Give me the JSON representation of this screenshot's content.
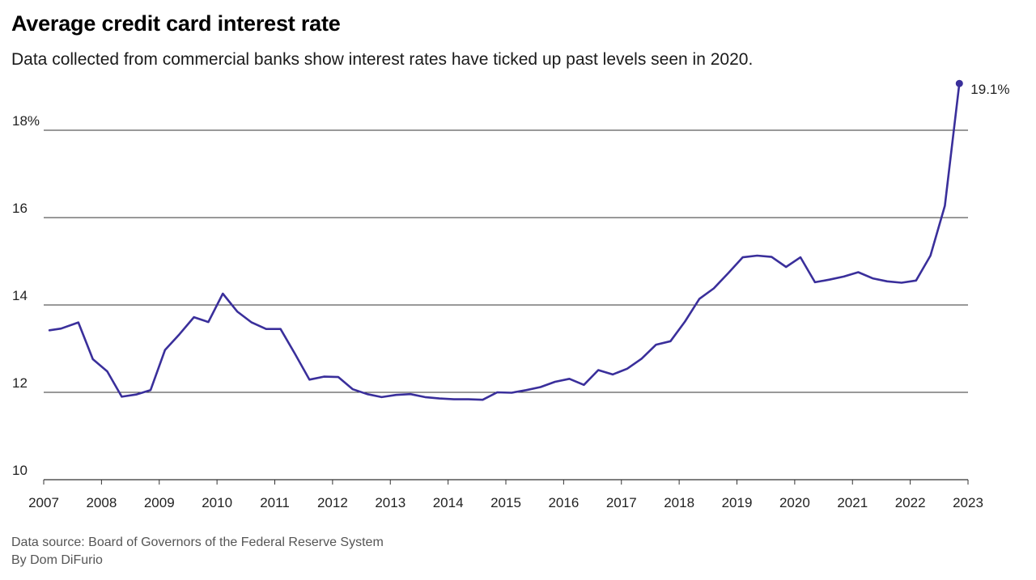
{
  "header": {
    "title": "Average credit card interest rate",
    "subtitle": "Data collected from commercial banks show interest rates have ticked up past levels seen in 2020."
  },
  "footer": {
    "source": "Data source: Board of Governors of the Federal Reserve System",
    "byline": "By Dom DiFurio"
  },
  "colors": {
    "line": "#3a2f9b",
    "grid": "#333333",
    "axis": "#333333"
  },
  "chart_data": {
    "type": "line",
    "title": "Average credit card interest rate",
    "xlabel": "",
    "ylabel": "",
    "xlim": [
      2007,
      2023
    ],
    "ylim": [
      10,
      19.1
    ],
    "x_ticks": [
      2007,
      2008,
      2009,
      2010,
      2011,
      2012,
      2013,
      2014,
      2015,
      2016,
      2017,
      2018,
      2019,
      2020,
      2021,
      2022,
      2023
    ],
    "x_tick_labels": [
      "2007",
      "2008",
      "2009",
      "2010",
      "2011",
      "2012",
      "2013",
      "2014",
      "2015",
      "2016",
      "2017",
      "2018",
      "2019",
      "2020",
      "2021",
      "2022",
      "2023"
    ],
    "y_ticks": [
      10,
      12,
      14,
      16,
      18
    ],
    "y_tick_labels": [
      "10",
      "12",
      "14",
      "16",
      "18%"
    ],
    "grid": "horizontal",
    "end_label": "19.1%",
    "series": [
      {
        "x": [
          2007.1,
          2007.3,
          2007.6,
          2007.85,
          2008.1,
          2008.35,
          2008.6,
          2008.85,
          2009.1,
          2009.35,
          2009.6,
          2009.85,
          2010.1,
          2010.35,
          2010.6,
          2010.85,
          2011.1,
          2011.35,
          2011.6,
          2011.85,
          2012.1,
          2012.35,
          2012.6,
          2012.85,
          2013.1,
          2013.35,
          2013.6,
          2013.85,
          2014.1,
          2014.35,
          2014.6,
          2014.85,
          2015.1,
          2015.35,
          2015.6,
          2015.85,
          2016.1,
          2016.35,
          2016.6,
          2016.85,
          2017.1,
          2017.35,
          2017.6,
          2017.85,
          2018.1,
          2018.35,
          2018.6,
          2018.85,
          2019.1,
          2019.35,
          2019.6,
          2019.85,
          2020.1,
          2020.35,
          2020.6,
          2020.85,
          2021.1,
          2021.35,
          2021.6,
          2021.85,
          2022.1,
          2022.35,
          2022.6,
          2022.85
        ],
        "values": [
          13.42,
          13.46,
          13.6,
          12.76,
          12.48,
          11.9,
          11.95,
          12.05,
          12.97,
          13.33,
          13.72,
          13.61,
          14.26,
          13.85,
          13.6,
          13.45,
          13.45,
          12.88,
          12.29,
          12.36,
          12.35,
          12.07,
          11.96,
          11.89,
          11.94,
          11.96,
          11.89,
          11.86,
          11.84,
          11.84,
          11.83,
          12.0,
          11.99,
          12.05,
          12.12,
          12.24,
          12.31,
          12.17,
          12.51,
          12.41,
          12.54,
          12.77,
          13.09,
          13.17,
          13.62,
          14.14,
          14.38,
          14.73,
          15.09,
          15.13,
          15.1,
          14.87,
          15.09,
          14.52,
          14.58,
          14.65,
          14.75,
          14.61,
          14.54,
          14.51,
          14.56,
          15.13,
          16.27,
          19.07
        ]
      }
    ]
  }
}
